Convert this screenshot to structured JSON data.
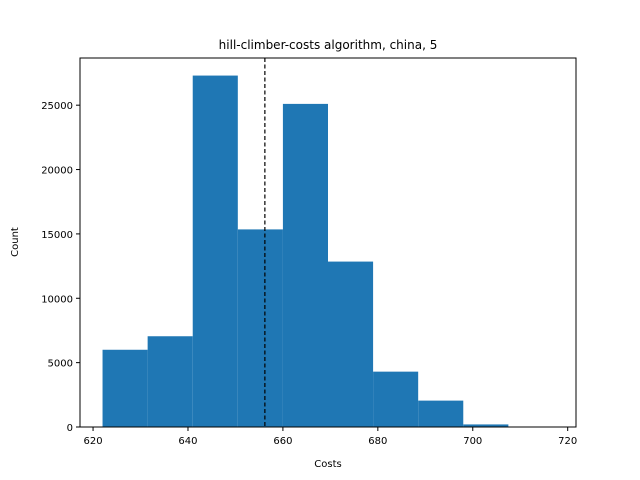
{
  "chart_data": {
    "type": "bar",
    "subtype": "histogram",
    "title": "hill-climber-costs algorithm, china, 5",
    "xlabel": "Costs",
    "ylabel": "Count",
    "bar_color": "#1f77b4",
    "bins": [
      {
        "x0": 622.0,
        "x1": 631.5,
        "count": 6000
      },
      {
        "x0": 631.5,
        "x1": 641.0,
        "count": 7050
      },
      {
        "x0": 641.0,
        "x1": 650.5,
        "count": 27300
      },
      {
        "x0": 650.5,
        "x1": 660.0,
        "count": 15350
      },
      {
        "x0": 660.0,
        "x1": 669.5,
        "count": 25100
      },
      {
        "x0": 669.5,
        "x1": 679.0,
        "count": 12850
      },
      {
        "x0": 679.0,
        "x1": 688.5,
        "count": 4300
      },
      {
        "x0": 688.5,
        "x1": 698.0,
        "count": 2050
      },
      {
        "x0": 698.0,
        "x1": 707.5,
        "count": 200
      },
      {
        "x0": 707.5,
        "x1": 717.0,
        "count": 30
      }
    ],
    "mean_line": {
      "x": 656.2,
      "style": "dashed",
      "color": "#000000"
    },
    "xlim": [
      617.25,
      721.75
    ],
    "ylim": [
      0,
      28665
    ],
    "xticks": [
      620,
      640,
      660,
      680,
      700,
      720
    ],
    "yticks": [
      0,
      5000,
      10000,
      15000,
      20000,
      25000
    ],
    "grid": false,
    "legend": "none"
  }
}
